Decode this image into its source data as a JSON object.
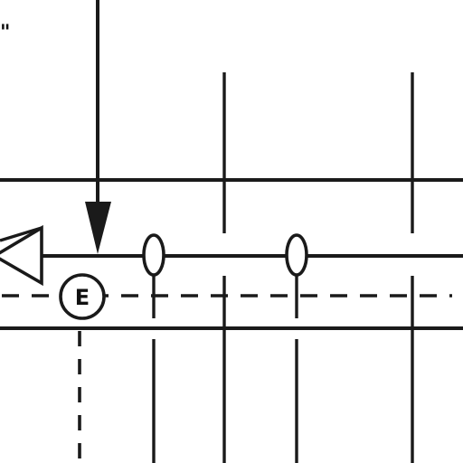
{
  "diagram": {
    "edge_text": "\"",
    "symbols": {
      "element_tag": {
        "label": "E"
      }
    },
    "colors": {
      "ink": "#1a1a1a",
      "paper": "#ffffff"
    }
  }
}
